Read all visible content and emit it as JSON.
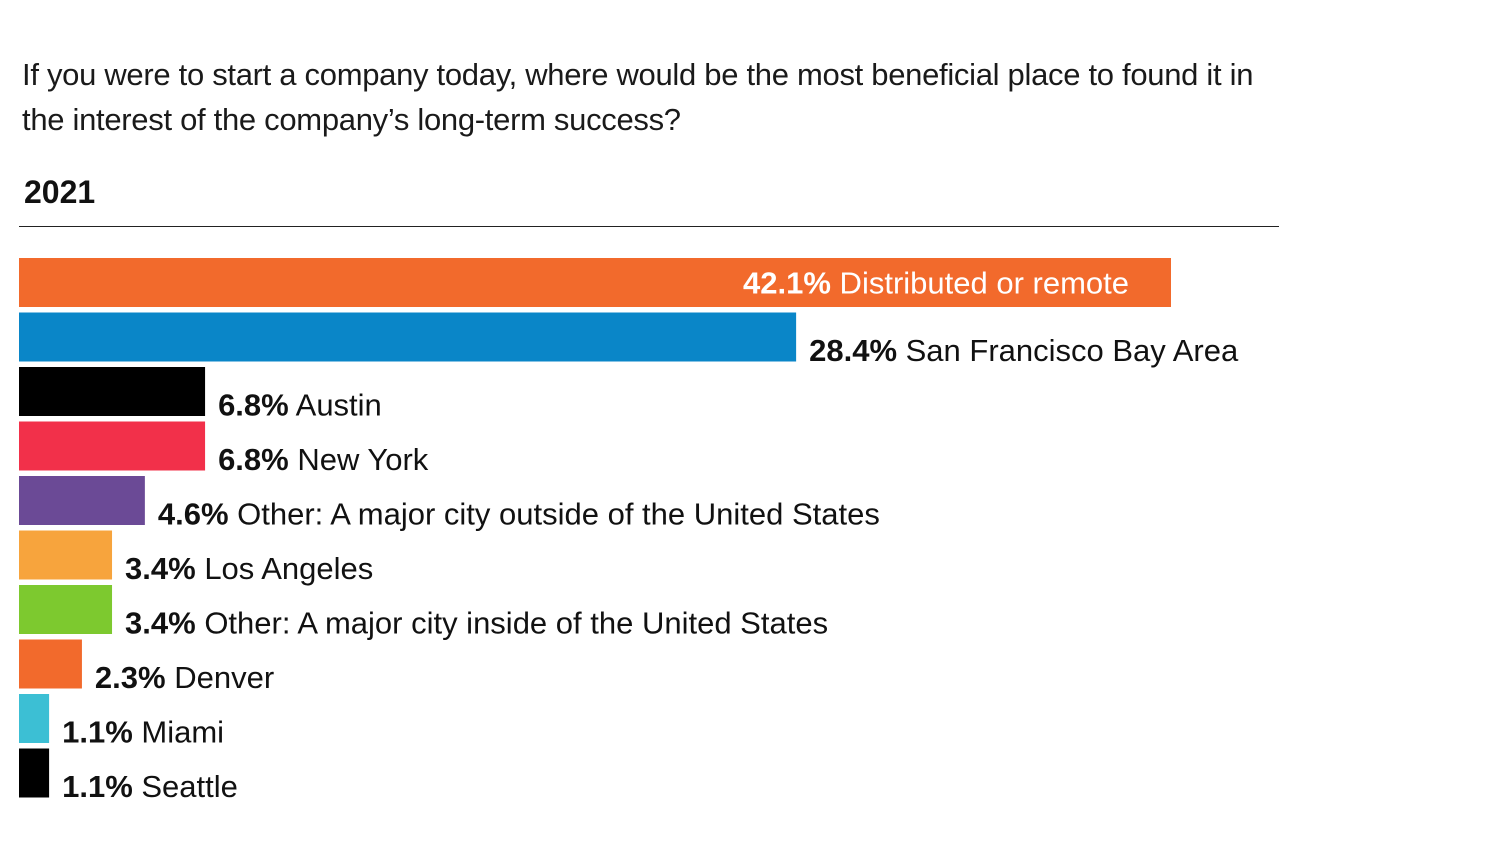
{
  "chart_data": {
    "type": "bar",
    "orientation": "horizontal",
    "title": "If you were to start a company today, where would be the most beneficial place to found it in the interest of the company’s long-term success?",
    "subtitle": "2021",
    "xlim": [
      0,
      42.1
    ],
    "grid": false,
    "legend": "none",
    "bars": [
      {
        "value": 42.1,
        "value_label": "42.1%",
        "category": "Distributed or remote",
        "color": "#f26a2c",
        "label_inside": true
      },
      {
        "value": 28.4,
        "value_label": "28.4%",
        "category": "San Francisco Bay Area",
        "color": "#0a86c8",
        "label_inside": false
      },
      {
        "value": 6.8,
        "value_label": "6.8%",
        "category": "Austin",
        "color": "#000000",
        "label_inside": false
      },
      {
        "value": 6.8,
        "value_label": "6.8%",
        "category": "New York",
        "color": "#f2304a",
        "label_inside": false
      },
      {
        "value": 4.6,
        "value_label": "4.6%",
        "category": "Other: A major city outside of the United States",
        "color": "#6b4a96",
        "label_inside": false
      },
      {
        "value": 3.4,
        "value_label": "3.4%",
        "category": "Los Angeles",
        "color": "#f7a43d",
        "label_inside": false
      },
      {
        "value": 3.4,
        "value_label": "3.4%",
        "category": "Other: A major city inside of the United States",
        "color": "#7dc92f",
        "label_inside": false
      },
      {
        "value": 2.3,
        "value_label": "2.3%",
        "category": "Denver",
        "color": "#f26a2c",
        "label_inside": false
      },
      {
        "value": 1.1,
        "value_label": "1.1%",
        "category": "Miami",
        "color": "#3cbfd4",
        "label_inside": false
      },
      {
        "value": 1.1,
        "value_label": "1.1%",
        "category": "Seattle",
        "color": "#000000",
        "label_inside": false
      }
    ]
  }
}
